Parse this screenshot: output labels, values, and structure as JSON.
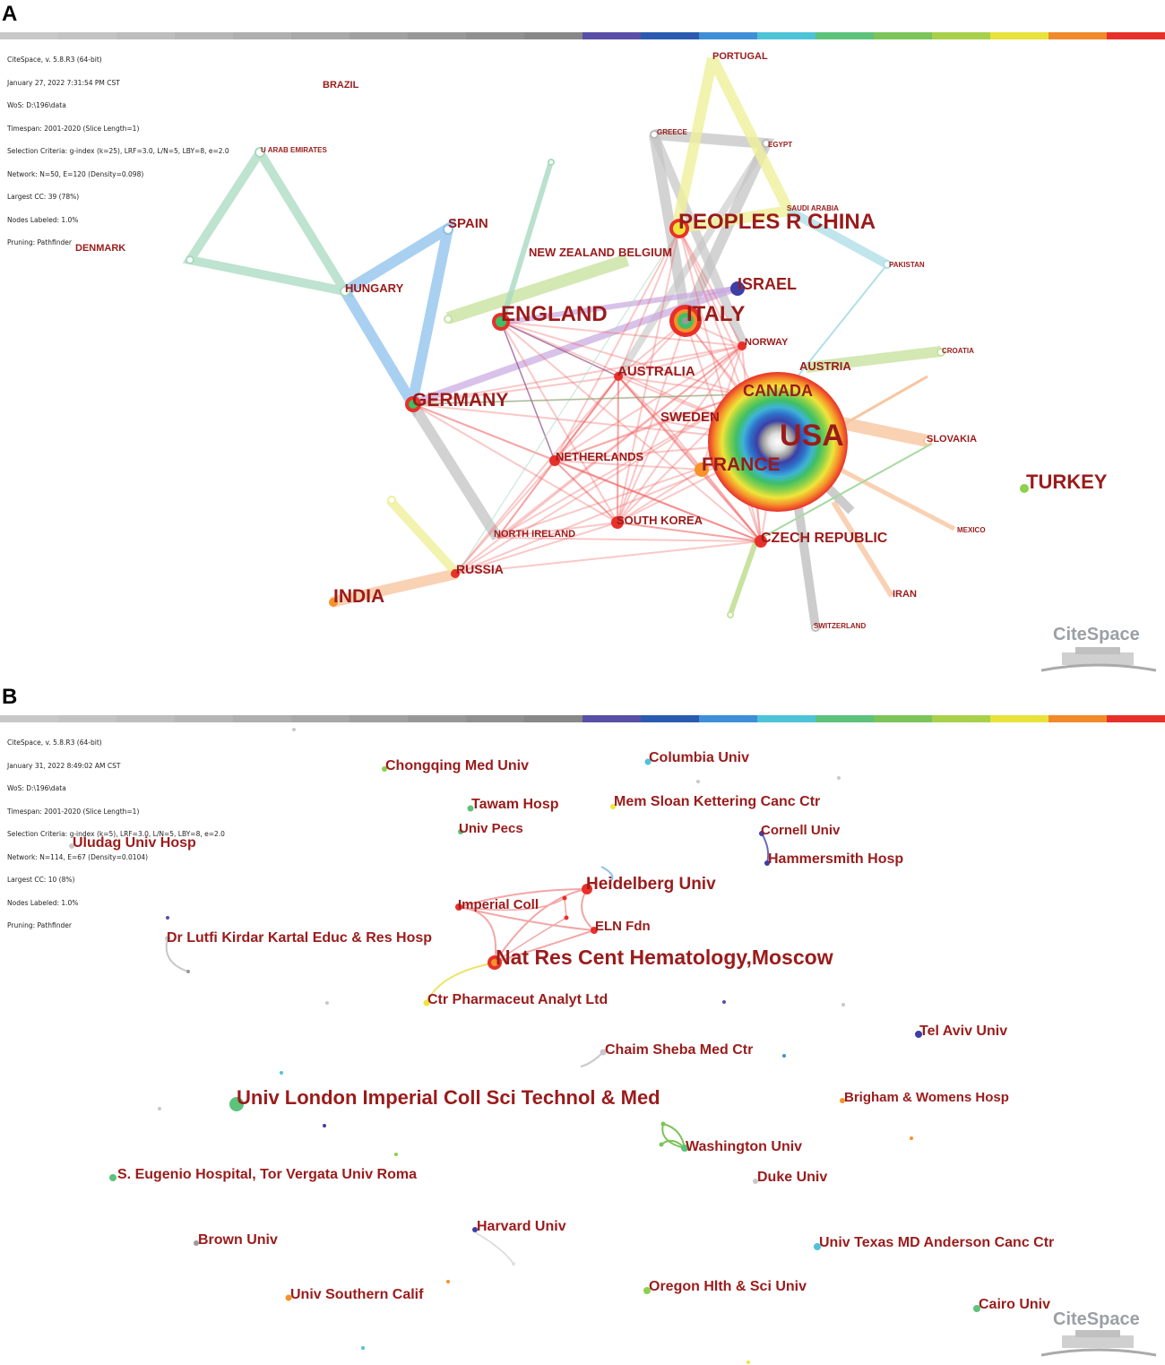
{
  "panel_a": {
    "letter": "A",
    "meta_lines": [
      "CiteSpace, v. 5.8.R3 (64-bit)",
      "January 27, 2022 7:31:54 PM CST",
      "WoS: D:\\196\\data",
      "Timespan: 2001-2020 (Slice Length=1)",
      "Selection Criteria: g-index (k=25), LRF=3.0, L/N=5, LBY=8, e=2.0",
      "Network: N=50, E=120 (Density=0.098)",
      "Largest CC: 39 (78%)",
      "Nodes Labeled: 1.0%",
      "Pruning: Pathfinder"
    ],
    "watermark": "CiteSpace",
    "nodes": [
      {
        "id": "USA",
        "label": "USA"
      },
      {
        "id": "CHINA",
        "label": "PEOPLES R CHINA"
      },
      {
        "id": "ITALY",
        "label": "ITALY"
      },
      {
        "id": "ENGLAND",
        "label": "ENGLAND"
      },
      {
        "id": "GERMANY",
        "label": "GERMANY"
      },
      {
        "id": "FRANCE",
        "label": "FRANCE"
      },
      {
        "id": "CANADA",
        "label": "CANADA"
      },
      {
        "id": "TURKEY",
        "label": "TURKEY"
      },
      {
        "id": "INDIA",
        "label": "INDIA"
      },
      {
        "id": "ISRAEL",
        "label": "ISRAEL"
      },
      {
        "id": "AUSTRALIA",
        "label": "AUSTRALIA"
      },
      {
        "id": "SWEDEN",
        "label": "SWEDEN"
      },
      {
        "id": "NETHERLANDS",
        "label": "NETHERLANDS"
      },
      {
        "id": "SOUTH_KOREA",
        "label": "SOUTH KOREA"
      },
      {
        "id": "CZECH",
        "label": "CZECH REPUBLIC"
      },
      {
        "id": "RUSSIA",
        "label": "RUSSIA"
      },
      {
        "id": "SPAIN",
        "label": "SPAIN"
      },
      {
        "id": "HUNGARY",
        "label": "HUNGARY"
      },
      {
        "id": "NZ",
        "label": "NEW ZEALAND"
      },
      {
        "id": "BELGIUM",
        "label": "BELGIUM"
      },
      {
        "id": "AUSTRIA",
        "label": "AUSTRIA"
      },
      {
        "id": "NORWAY",
        "label": "NORWAY"
      },
      {
        "id": "SLOVAKIA",
        "label": "SLOVAKIA"
      },
      {
        "id": "NIRELAND",
        "label": "NORTH IRELAND"
      },
      {
        "id": "PORTUGAL",
        "label": "PORTUGAL"
      },
      {
        "id": "GREECE",
        "label": "GREECE"
      },
      {
        "id": "EGYPT",
        "label": "EGYPT"
      },
      {
        "id": "SAUDI",
        "label": "SAUDI ARABIA"
      },
      {
        "id": "PAKISTAN",
        "label": "PAKISTAN"
      },
      {
        "id": "CROATIA",
        "label": "CROATIA"
      },
      {
        "id": "MEXICO",
        "label": "MEXICO"
      },
      {
        "id": "IRAN",
        "label": "IRAN"
      },
      {
        "id": "SWITZERLAND",
        "label": "SWITZERLAND"
      },
      {
        "id": "UAE",
        "label": "U ARAB EMIRATES"
      },
      {
        "id": "BRAZIL",
        "label": "BRAZIL"
      },
      {
        "id": "DENMARK",
        "label": "DENMARK"
      }
    ]
  },
  "panel_b": {
    "letter": "B",
    "meta_lines": [
      "CiteSpace, v. 5.8.R3 (64-bit)",
      "January 31, 2022 8:49:02 AM CST",
      "WoS: D:\\196\\data",
      "Timespan: 2001-2020 (Slice Length=1)",
      "Selection Criteria: g-index (k=5), LRF=3.0, L/N=5, LBY=8, e=2.0",
      "Network: N=114, E=67 (Density=0.0104)",
      "Largest CC: 10 (8%)",
      "Nodes Labeled: 1.0%",
      "Pruning: Pathfinder"
    ],
    "watermark": "CiteSpace",
    "nodes": [
      {
        "id": "chongqing",
        "label": "Chongqing Med Univ"
      },
      {
        "id": "columbia",
        "label": "Columbia Univ"
      },
      {
        "id": "tawam",
        "label": "Tawam Hosp"
      },
      {
        "id": "msk",
        "label": "Mem Sloan Kettering Canc Ctr"
      },
      {
        "id": "pecs",
        "label": "Univ Pecs"
      },
      {
        "id": "cornell",
        "label": "Cornell Univ"
      },
      {
        "id": "uludag",
        "label": "Uludag Univ Hosp"
      },
      {
        "id": "hammersmith",
        "label": "Hammersmith Hosp"
      },
      {
        "id": "heidelberg",
        "label": "Heidelberg Univ"
      },
      {
        "id": "imperial",
        "label": "Imperial Coll"
      },
      {
        "id": "eln",
        "label": "ELN Fdn"
      },
      {
        "id": "lutfi",
        "label": "Dr Lutfi Kirdar Kartal Educ & Res Hosp"
      },
      {
        "id": "moscow",
        "label": "Nat Res Cent Hematology,Moscow"
      },
      {
        "id": "ctrpharm",
        "label": "Ctr Pharmaceut Analyt Ltd"
      },
      {
        "id": "telaviv",
        "label": "Tel Aviv Univ"
      },
      {
        "id": "sheba",
        "label": "Chaim Sheba Med Ctr"
      },
      {
        "id": "ucl",
        "label": "Univ London Imperial Coll Sci Technol & Med"
      },
      {
        "id": "brigham",
        "label": "Brigham & Womens Hosp"
      },
      {
        "id": "washington",
        "label": "Washington Univ"
      },
      {
        "id": "eugenio",
        "label": "S. Eugenio Hospital, Tor Vergata Univ Roma"
      },
      {
        "id": "duke",
        "label": "Duke Univ"
      },
      {
        "id": "harvard",
        "label": "Harvard Univ"
      },
      {
        "id": "brown",
        "label": "Brown Univ"
      },
      {
        "id": "mdanderson",
        "label": "Univ Texas MD Anderson Canc Ctr"
      },
      {
        "id": "usc",
        "label": "Univ Southern Calif"
      },
      {
        "id": "oregon",
        "label": "Oregon Hlth & Sci Univ"
      },
      {
        "id": "cairo",
        "label": "Cairo Univ"
      }
    ]
  }
}
